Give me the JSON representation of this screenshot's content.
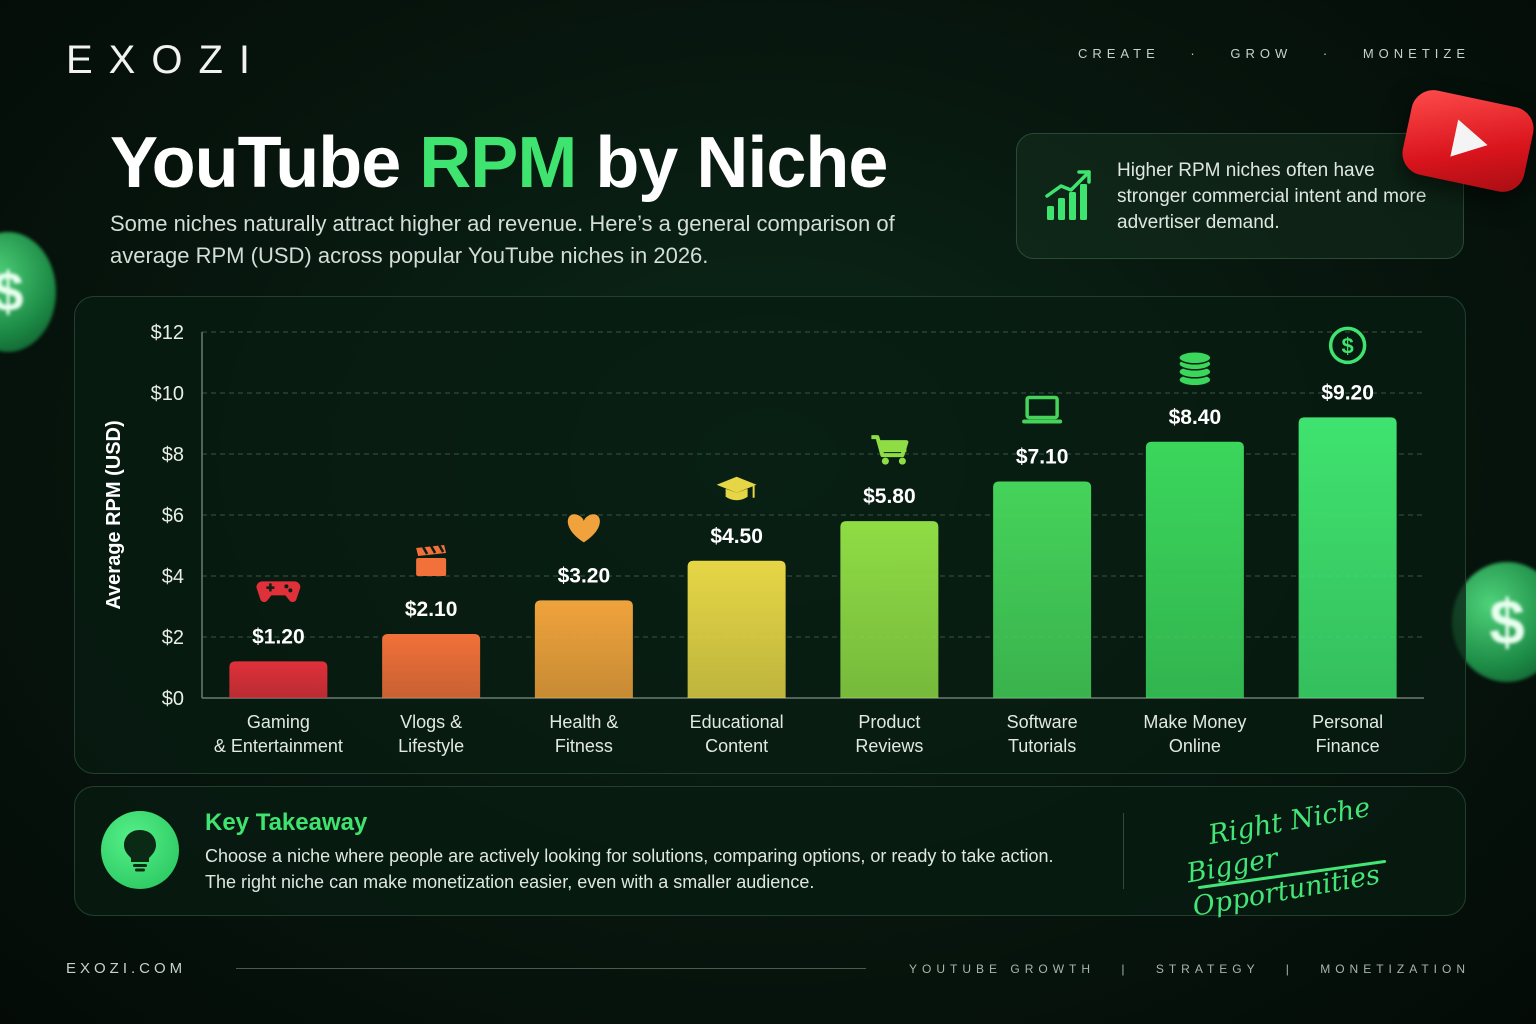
{
  "brand": "EXOZI",
  "tagline": [
    "CREATE",
    "·",
    "GROW",
    "·",
    "MONETIZE"
  ],
  "title": {
    "part1": "YouTube",
    "accent": "RPM",
    "part2": "by Niche"
  },
  "subtitle": "Some niches naturally attract higher ad revenue. Here’s a general comparison of average RPM (USD) across popular YouTube niches in 2026.",
  "callout": {
    "icon": "growth-chart-icon",
    "text": "Higher RPM niches often have stronger commercial intent and more advertiser demand."
  },
  "decor": {
    "youtube_logo": "youtube-play-icon",
    "coin_symbol": "$"
  },
  "chart_data": {
    "type": "bar",
    "ylabel": "Average RPM (USD)",
    "ylim": [
      0,
      12
    ],
    "yticks": [
      0,
      2,
      4,
      6,
      8,
      10,
      12
    ],
    "ytick_labels": [
      "$0",
      "$2",
      "$4",
      "$6",
      "$8",
      "$10",
      "$12"
    ],
    "grid": true,
    "categories": [
      [
        "Gaming",
        "& Entertainment"
      ],
      [
        "Vlogs &",
        "Lifestyle"
      ],
      [
        "Health &",
        "Fitness"
      ],
      [
        "Educational",
        "Content"
      ],
      [
        "Product",
        "Reviews"
      ],
      [
        "Software",
        "Tutorials"
      ],
      [
        "Make Money",
        "Online"
      ],
      [
        "Personal",
        "Finance"
      ]
    ],
    "values": [
      1.2,
      2.1,
      3.2,
      4.5,
      5.8,
      7.1,
      8.4,
      9.2
    ],
    "value_labels": [
      "$1.20",
      "$2.10",
      "$3.20",
      "$4.50",
      "$5.80",
      "$7.10",
      "$8.40",
      "$9.20"
    ],
    "icons": [
      "gamepad-icon",
      "clapperboard-icon",
      "heart-icon",
      "graduation-cap-icon",
      "shopping-cart-icon",
      "laptop-icon",
      "coin-stack-icon",
      "dollar-circle-icon"
    ],
    "colors": [
      "#e0303a",
      "#f2703a",
      "#f0a33c",
      "#e6d646",
      "#8fdc45",
      "#45d35a",
      "#3bd65c",
      "#3fe36f"
    ]
  },
  "takeaway": {
    "icon": "lightbulb-icon",
    "title": "Key Takeaway",
    "line1": "Choose a niche where people are actively looking for solutions, comparing options, or ready to take action.",
    "line2": "The right niche can make monetization easier, even with a smaller audience.",
    "script_line1": "Right Niche",
    "script_line2": "Bigger Opportunities"
  },
  "footer": {
    "site": "EXOZI.COM",
    "tags": [
      "YOUTUBE GROWTH",
      "|",
      "STRATEGY",
      "|",
      "MONETIZATION"
    ]
  }
}
